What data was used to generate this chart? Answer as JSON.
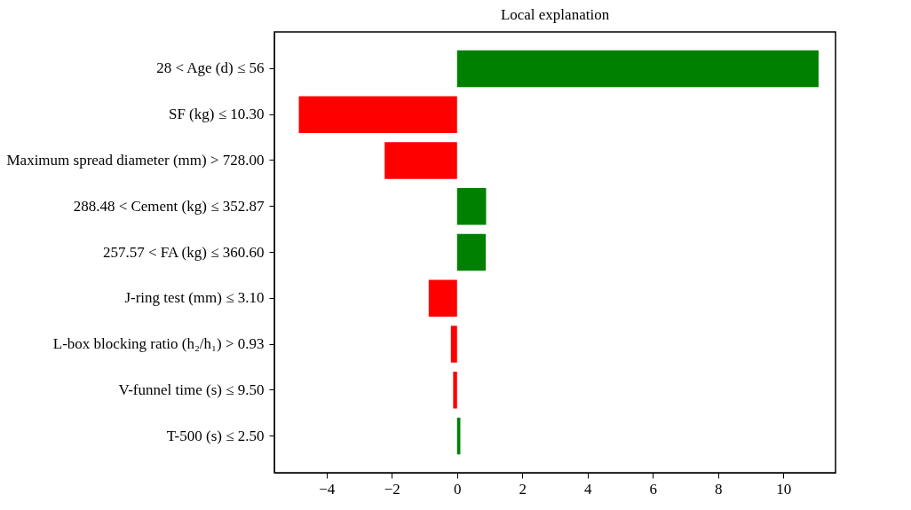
{
  "chart_data": {
    "type": "bar",
    "orientation": "horizontal",
    "title": "Local explanation",
    "categories": [
      "28 < Age (d) ≤ 56",
      "SF (kg) ≤ 10.30",
      "Maximum spread diameter (mm) > 728.00",
      "288.48 < Cement (kg) ≤ 352.87",
      "257.57 < FA (kg) ≤ 360.60",
      "J-ring test (mm) ≤ 3.10",
      "L-box blocking ratio (h₂/h₁) > 0.93",
      "V-funnel time (s) ≤ 9.50",
      "T-500 (s) ≤ 2.50"
    ],
    "values": [
      11.08,
      -4.85,
      -2.22,
      0.89,
      0.88,
      -0.87,
      -0.19,
      -0.12,
      0.1
    ],
    "colors": [
      "#008000",
      "#ff0000",
      "#ff0000",
      "#008000",
      "#008000",
      "#ff0000",
      "#ff0000",
      "#ff0000",
      "#008000"
    ],
    "xlim": [
      -5.6,
      11.6
    ],
    "xticks": [
      {
        "value": -4,
        "label": "−4"
      },
      {
        "value": -2,
        "label": "−2"
      },
      0,
      2,
      4,
      6,
      8,
      10
    ],
    "grid": false,
    "legend": false
  }
}
